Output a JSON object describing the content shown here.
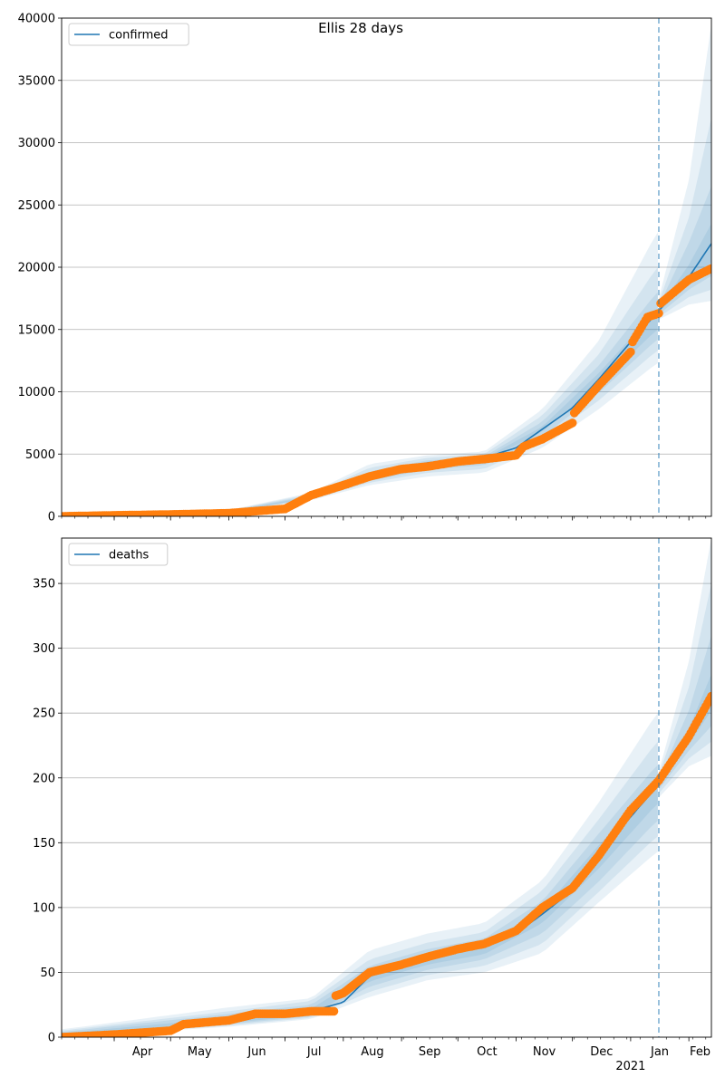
{
  "figure": {
    "title": "Ellis 28 days"
  },
  "colors": {
    "model": "#1f77b4",
    "observed": "#ff7f0e",
    "band": "#1f77b4",
    "grid": "#b0b0b0",
    "forecast_line": "#1f77b4"
  },
  "chart_data": [
    {
      "type": "line",
      "title": "",
      "xlabel": "",
      "ylabel": "",
      "legend": {
        "entries": [
          "confirmed"
        ],
        "placement": "top-left"
      },
      "grid": "horizontal",
      "xlim": [
        "2020-03-04",
        "2021-02-13"
      ],
      "ylim": [
        0,
        40000
      ],
      "yticks": [
        0,
        5000,
        10000,
        15000,
        20000,
        25000,
        30000,
        35000,
        40000
      ],
      "forecast_start": "2021-01-16",
      "series": [
        {
          "name": "confirmed",
          "kind": "model",
          "x": [
            "2020-03-04",
            "2020-04-01",
            "2020-05-01",
            "2020-06-01",
            "2020-07-01",
            "2020-07-15",
            "2020-08-01",
            "2020-08-15",
            "2020-09-01",
            "2020-09-15",
            "2020-10-01",
            "2020-10-15",
            "2020-11-01",
            "2020-11-15",
            "2020-12-01",
            "2020-12-15",
            "2021-01-01",
            "2021-01-16",
            "2021-02-01",
            "2021-02-13"
          ],
          "y": [
            0,
            100,
            200,
            350,
            700,
            1500,
            2300,
            3100,
            3900,
            4300,
            4500,
            4700,
            5500,
            7000,
            8700,
            11000,
            14000,
            16500,
            19200,
            21900
          ]
        },
        {
          "name": "",
          "kind": "observed",
          "x": [
            "2020-03-04",
            "2020-04-01",
            "2020-05-01",
            "2020-06-01",
            "2020-07-01",
            "2020-07-15",
            "2020-08-01",
            "2020-08-15",
            "2020-09-01",
            "2020-09-15",
            "2020-10-01",
            "2020-10-15",
            "2020-11-01",
            "2020-11-05",
            "2020-11-15",
            "2020-12-01",
            "2020-12-02",
            "2020-12-15",
            "2021-01-01",
            "2021-01-02",
            "2021-01-10",
            "2021-01-16",
            "2021-01-17",
            "2021-02-01",
            "2021-02-13"
          ],
          "y": [
            0,
            80,
            150,
            250,
            600,
            1700,
            2500,
            3200,
            3800,
            4000,
            4400,
            4600,
            4900,
            5600,
            6200,
            7500,
            8300,
            10500,
            13200,
            14000,
            16000,
            16300,
            17100,
            19000,
            19900
          ]
        }
      ],
      "bands": [
        {
          "x": [
            "2020-03-04",
            "2020-06-01",
            "2020-07-15",
            "2020-08-15",
            "2020-09-15",
            "2020-10-15",
            "2020-11-15",
            "2020-12-15",
            "2021-01-15",
            "2021-01-16",
            "2021-02-01",
            "2021-02-13"
          ],
          "low": [
            0,
            300,
            1300,
            2500,
            3200,
            3500,
            5500,
            8600,
            12300,
            15800,
            17000,
            17300
          ],
          "high": [
            0,
            500,
            1900,
            4200,
            4900,
            5200,
            8600,
            14100,
            22800,
            17500,
            27000,
            39500
          ]
        },
        {
          "x": [
            "2020-03-04",
            "2020-06-01",
            "2020-07-15",
            "2020-08-15",
            "2020-09-15",
            "2020-10-15",
            "2020-11-15",
            "2020-12-15",
            "2021-01-15",
            "2021-01-16",
            "2021-02-01",
            "2021-02-13"
          ],
          "low": [
            0,
            320,
            1350,
            2700,
            3500,
            3800,
            6000,
            9300,
            13300,
            16000,
            17600,
            18200
          ],
          "high": [
            0,
            470,
            1800,
            3900,
            4700,
            5000,
            8100,
            13000,
            20000,
            17200,
            24000,
            32000
          ]
        },
        {
          "x": [
            "2020-03-04",
            "2020-06-01",
            "2020-07-15",
            "2020-08-15",
            "2020-09-15",
            "2020-10-15",
            "2020-11-15",
            "2020-12-15",
            "2021-01-15",
            "2021-01-16",
            "2021-02-01",
            "2021-02-13"
          ],
          "low": [
            0,
            340,
            1400,
            2850,
            3750,
            4100,
            6400,
            9900,
            14200,
            16200,
            18200,
            19300
          ],
          "high": [
            0,
            440,
            1700,
            3600,
            4500,
            4800,
            7600,
            12100,
            18000,
            16900,
            22000,
            26500
          ]
        },
        {
          "x": [
            "2020-03-04",
            "2020-06-01",
            "2020-07-15",
            "2020-08-15",
            "2020-09-15",
            "2020-10-15",
            "2020-11-15",
            "2020-12-15",
            "2021-01-15",
            "2021-01-16",
            "2021-02-01",
            "2021-02-13"
          ],
          "low": [
            0,
            360,
            1450,
            3000,
            4000,
            4400,
            6800,
            10500,
            15000,
            16400,
            18700,
            20400
          ],
          "high": [
            0,
            410,
            1600,
            3300,
            4400,
            4650,
            7200,
            11500,
            16600,
            16700,
            20200,
            23500
          ]
        }
      ],
      "xticks": {
        "labels": [
          "Apr",
          "May",
          "Jun",
          "Jul",
          "Aug",
          "Sep",
          "Oct",
          "Nov",
          "Dec",
          "Jan\n2021",
          "Feb"
        ],
        "visible": false
      }
    },
    {
      "type": "line",
      "title": "",
      "xlabel": "",
      "ylabel": "",
      "legend": {
        "entries": [
          "deaths"
        ],
        "placement": "top-left"
      },
      "grid": "horizontal",
      "xlim": [
        "2020-03-04",
        "2021-02-13"
      ],
      "ylim": [
        0,
        385
      ],
      "yticks": [
        0,
        50,
        100,
        150,
        200,
        250,
        300,
        350
      ],
      "forecast_start": "2021-01-16",
      "series": [
        {
          "name": "deaths",
          "kind": "model",
          "x": [
            "2020-03-04",
            "2020-04-01",
            "2020-05-01",
            "2020-06-01",
            "2020-07-01",
            "2020-07-15",
            "2020-08-01",
            "2020-08-15",
            "2020-09-01",
            "2020-09-15",
            "2020-10-01",
            "2020-10-15",
            "2020-11-01",
            "2020-11-15",
            "2020-12-01",
            "2020-12-15",
            "2021-01-01",
            "2021-01-16",
            "2021-02-01",
            "2021-02-13"
          ],
          "y": [
            0,
            2,
            6,
            13,
            19,
            20,
            27,
            47,
            55,
            62,
            67,
            72,
            80,
            95,
            113,
            140,
            170,
            195,
            230,
            262
          ]
        },
        {
          "name": "",
          "kind": "observed",
          "x": [
            "2020-03-04",
            "2020-04-01",
            "2020-05-01",
            "2020-05-08",
            "2020-06-01",
            "2020-06-15",
            "2020-07-01",
            "2020-07-15",
            "2020-07-27",
            "2020-07-28",
            "2020-08-01",
            "2020-08-15",
            "2020-09-01",
            "2020-09-15",
            "2020-10-01",
            "2020-10-15",
            "2020-11-01",
            "2020-11-15",
            "2020-12-01",
            "2020-12-15",
            "2021-01-01",
            "2021-01-16",
            "2021-02-01",
            "2021-02-08",
            "2021-02-13"
          ],
          "y": [
            0,
            2,
            5,
            10,
            13,
            18,
            18,
            20,
            20,
            32,
            34,
            50,
            56,
            62,
            68,
            72,
            82,
            100,
            115,
            140,
            175,
            198,
            232,
            250,
            263
          ]
        }
      ],
      "bands": [
        {
          "x": [
            "2020-03-04",
            "2020-06-01",
            "2020-07-15",
            "2020-08-15",
            "2020-09-15",
            "2020-10-15",
            "2020-11-15",
            "2020-12-15",
            "2021-01-15",
            "2021-01-16",
            "2021-02-01",
            "2021-02-13"
          ],
          "low": [
            0,
            8,
            14,
            31,
            44,
            50,
            65,
            104,
            143,
            185,
            209,
            217
          ],
          "high": [
            6,
            23,
            30,
            67,
            80,
            88,
            121,
            181,
            250,
            205,
            290,
            385
          ]
        },
        {
          "x": [
            "2020-03-04",
            "2020-06-01",
            "2020-07-15",
            "2020-08-15",
            "2020-09-15",
            "2020-10-15",
            "2020-11-15",
            "2020-12-15",
            "2021-01-15",
            "2021-01-16",
            "2021-02-01",
            "2021-02-13"
          ],
          "low": [
            0,
            9,
            15,
            35,
            48,
            55,
            72,
            112,
            155,
            188,
            215,
            228
          ],
          "high": [
            5,
            20,
            28,
            60,
            73,
            81,
            113,
            168,
            228,
            202,
            270,
            350
          ]
        },
        {
          "x": [
            "2020-03-04",
            "2020-06-01",
            "2020-07-15",
            "2020-08-15",
            "2020-09-15",
            "2020-10-15",
            "2020-11-15",
            "2020-12-15",
            "2021-01-15",
            "2021-01-16",
            "2021-02-01",
            "2021-02-13"
          ],
          "low": [
            0,
            10,
            16,
            39,
            52,
            60,
            80,
            120,
            167,
            191,
            221,
            240
          ],
          "high": [
            4,
            18,
            25,
            55,
            68,
            76,
            105,
            157,
            210,
            199,
            252,
            310
          ]
        },
        {
          "x": [
            "2020-03-04",
            "2020-06-01",
            "2020-07-15",
            "2020-08-15",
            "2020-09-15",
            "2020-10-15",
            "2020-11-15",
            "2020-12-15",
            "2021-01-15",
            "2021-01-16",
            "2021-02-01",
            "2021-02-13"
          ],
          "low": [
            0,
            11,
            17,
            43,
            56,
            64,
            88,
            130,
            180,
            193,
            226,
            252
          ],
          "high": [
            3,
            15,
            22,
            50,
            64,
            72,
            98,
            148,
            195,
            197,
            238,
            280
          ]
        }
      ],
      "xticks": {
        "labels": [
          "Apr",
          "May",
          "Jun",
          "Jul",
          "Aug",
          "Sep",
          "Oct",
          "Nov",
          "Dec",
          "Jan\n2021",
          "Feb"
        ],
        "visible": true
      }
    }
  ]
}
